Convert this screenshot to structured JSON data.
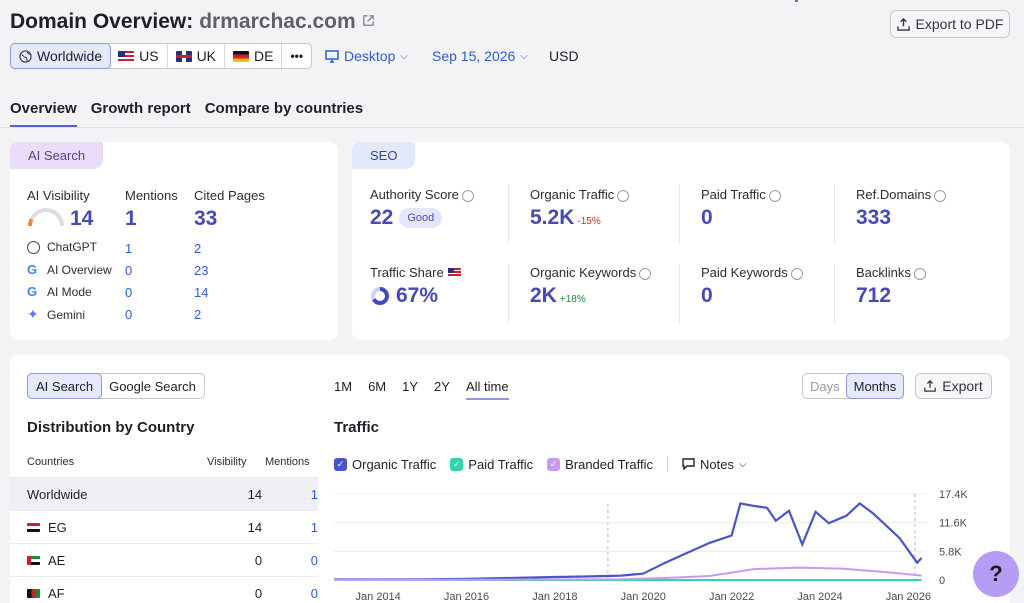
{
  "header": {
    "title_prefix": "Domain Overview:",
    "domain": "drmarchac.com",
    "export_pdf_label": "Export to PDF"
  },
  "regions": [
    {
      "label": "Worldwide",
      "selected": true
    },
    {
      "label": "US"
    },
    {
      "label": "UK"
    },
    {
      "label": "DE"
    },
    {
      "label": "•••"
    }
  ],
  "filters": {
    "device": "Desktop",
    "date": "Sep 15, 2026",
    "currency": "USD"
  },
  "tabs": [
    {
      "label": "Overview",
      "active": true
    },
    {
      "label": "Growth report"
    },
    {
      "label": "Compare by countries"
    }
  ],
  "ai_card": {
    "pill": "AI Search",
    "col_headers": {
      "visibility": "AI Visibility",
      "mentions": "Mentions",
      "cited": "Cited Pages"
    },
    "visibility": "14",
    "visibility_fraction": 0.14,
    "mentions": "1",
    "cited": "33",
    "sources": [
      {
        "name": "ChatGPT",
        "mentions": "1",
        "cited": "2"
      },
      {
        "name": "AI Overview",
        "mentions": "0",
        "cited": "23"
      },
      {
        "name": "AI Mode",
        "mentions": "0",
        "cited": "14"
      },
      {
        "name": "Gemini",
        "mentions": "0",
        "cited": "2"
      }
    ]
  },
  "seo_card": {
    "pill": "SEO",
    "authority_label": "Authority Score",
    "authority": "22",
    "authority_badge": "Good",
    "organic_traffic_label": "Organic Traffic",
    "organic_traffic": "5.2K",
    "organic_traffic_change": "-15%",
    "paid_traffic_label": "Paid Traffic",
    "paid_traffic": "0",
    "ref_domains_label": "Ref.Domains",
    "ref_domains": "333",
    "traffic_share_label": "Traffic Share",
    "traffic_share": "67%",
    "traffic_share_fraction": 0.67,
    "organic_keywords_label": "Organic Keywords",
    "organic_keywords": "2K",
    "organic_keywords_change": "+18%",
    "paid_keywords_label": "Paid Keywords",
    "paid_keywords": "0",
    "backlinks_label": "Backlinks",
    "backlinks": "712"
  },
  "bottom": {
    "source_toggle": [
      "AI Search",
      "Google Search"
    ],
    "ranges": [
      "1M",
      "6M",
      "1Y",
      "2Y",
      "All time"
    ],
    "granularity": [
      "Days",
      "Months"
    ],
    "export_label": "Export",
    "dist_title": "Distribution by Country",
    "dist_headers": {
      "country": "Countries",
      "visibility": "Visibility",
      "mentions": "Mentions"
    },
    "dist_rows": [
      {
        "country": "Worldwide",
        "visibility": "14",
        "mentions": "1"
      },
      {
        "country": "EG",
        "visibility": "14",
        "mentions": "1"
      },
      {
        "country": "AE",
        "visibility": "0",
        "mentions": "0"
      },
      {
        "country": "AF",
        "visibility": "0",
        "mentions": "0"
      }
    ],
    "traffic_title": "Traffic",
    "legend": [
      "Organic Traffic",
      "Paid Traffic",
      "Branded Traffic"
    ],
    "notes_label": "Notes",
    "help_label": "?"
  },
  "colors": {
    "organic": "#4a55c8",
    "paid": "#2fd4b0",
    "branded": "#c79bf0",
    "accent": "#5b5bd6"
  },
  "chart_data": {
    "type": "line",
    "x_ticks": [
      "Jan 2014",
      "Jan 2016",
      "Jan 2018",
      "Jan 2020",
      "Jan 2022",
      "Jan 2024",
      "Jan 2026"
    ],
    "y_ticks": [
      "17.4K",
      "11.6K",
      "5.8K",
      "0"
    ],
    "ylim": [
      0,
      17400
    ],
    "series": [
      {
        "name": "Organic Traffic",
        "x": [
          2013.0,
          2014.0,
          2015.0,
          2016.0,
          2017.0,
          2018.0,
          2018.7,
          2019.5,
          2020.0,
          2020.5,
          2021.0,
          2021.5,
          2022.0,
          2022.2,
          2022.5,
          2022.8,
          2023.0,
          2023.3,
          2023.6,
          2023.9,
          2024.2,
          2024.6,
          2024.9,
          2025.2,
          2025.5,
          2025.8,
          2026.0,
          2026.2,
          2026.3
        ],
        "values": [
          100,
          100,
          150,
          250,
          400,
          600,
          700,
          900,
          1300,
          3500,
          5500,
          7500,
          9000,
          15500,
          15000,
          14600,
          12000,
          14000,
          7200,
          13800,
          11500,
          13000,
          15500,
          13500,
          11000,
          8500,
          6000,
          3500,
          4500
        ]
      },
      {
        "name": "Paid Traffic",
        "x": [
          2013.0,
          2026.3
        ],
        "values": [
          0,
          0
        ]
      },
      {
        "name": "Branded Traffic",
        "x": [
          2013.0,
          2016.0,
          2018.0,
          2019.5,
          2020.5,
          2021.5,
          2022.5,
          2023.5,
          2024.5,
          2025.5,
          2026.3
        ],
        "values": [
          0,
          50,
          100,
          150,
          400,
          800,
          2200,
          2500,
          2300,
          1600,
          900
        ]
      }
    ]
  }
}
